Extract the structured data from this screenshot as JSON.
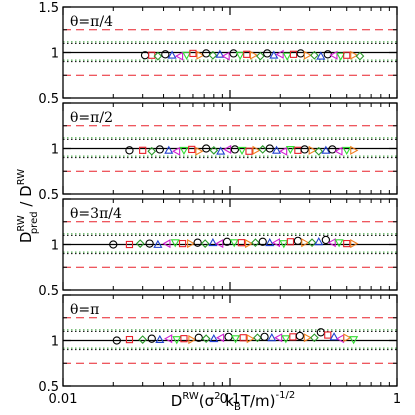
{
  "chart_data": {
    "type": "scatter",
    "xlabel_parts": {
      "D": "D",
      "RW": "RW",
      "open": "(σ",
      "two": "2",
      "k": " k",
      "B": "B",
      "close": "T/m)",
      "exp": "-1/2"
    },
    "ylabel_parts": {
      "D1": "D",
      "sup1": "RW",
      "sub1": "pred",
      "slash": " / ",
      "D2": "D",
      "sup2": "RW"
    },
    "x_scale": "log",
    "xlim": [
      0.01,
      1
    ],
    "x_ticks": [
      {
        "value": 0.01,
        "label": "0.01"
      },
      {
        "value": 0.1,
        "label": "0.1"
      },
      {
        "value": 1,
        "label": "1"
      }
    ],
    "ylim": [
      0.5,
      1.5
    ],
    "y_ticks": [
      {
        "value": 0.5,
        "label": "0.5"
      },
      {
        "value": 1,
        "label": "1"
      },
      {
        "value": 1.5,
        "label": "1.5"
      }
    ],
    "reference_lines": {
      "solid_black": 1.0,
      "dotted_black": [
        0.9,
        1.1
      ],
      "dotted_green": [
        0.9,
        1.1
      ],
      "dashed_red": [
        0.75,
        1.25
      ]
    },
    "colors": {
      "black": "#000000",
      "red": "#e8202a",
      "green": "#2a9a2a",
      "blue": "#2040d0",
      "magenta": "#d020d0",
      "brightgreen": "#33dd33",
      "orange": "#f08020"
    },
    "series_markers": [
      {
        "marker": "circle",
        "color": "#000000"
      },
      {
        "marker": "square",
        "color": "#e8202a"
      },
      {
        "marker": "diamond",
        "color": "#2a9a2a"
      },
      {
        "marker": "triangle-up",
        "color": "#2040d0"
      },
      {
        "marker": "triangle-left",
        "color": "#d020d0"
      },
      {
        "marker": "triangle-down",
        "color": "#33dd33"
      },
      {
        "marker": "triangle-right",
        "color": "#f08020"
      }
    ],
    "panels": [
      {
        "label": "θ=π/4",
        "points": [
          {
            "s": 0,
            "x": 0.031,
            "y": 0.97
          },
          {
            "s": 1,
            "x": 0.034,
            "y": 0.97
          },
          {
            "s": 2,
            "x": 0.037,
            "y": 0.96
          },
          {
            "s": 0,
            "x": 0.041,
            "y": 0.98
          },
          {
            "s": 3,
            "x": 0.045,
            "y": 0.97
          },
          {
            "s": 4,
            "x": 0.05,
            "y": 0.96
          },
          {
            "s": 5,
            "x": 0.055,
            "y": 0.97
          },
          {
            "s": 1,
            "x": 0.06,
            "y": 0.99
          },
          {
            "s": 6,
            "x": 0.066,
            "y": 0.97
          },
          {
            "s": 0,
            "x": 0.072,
            "y": 0.99
          },
          {
            "s": 2,
            "x": 0.079,
            "y": 0.97
          },
          {
            "s": 3,
            "x": 0.087,
            "y": 0.98
          },
          {
            "s": 4,
            "x": 0.095,
            "y": 0.96
          },
          {
            "s": 0,
            "x": 0.105,
            "y": 0.99
          },
          {
            "s": 5,
            "x": 0.115,
            "y": 0.97
          },
          {
            "s": 1,
            "x": 0.126,
            "y": 0.98
          },
          {
            "s": 6,
            "x": 0.138,
            "y": 0.97
          },
          {
            "s": 2,
            "x": 0.152,
            "y": 0.96
          },
          {
            "s": 0,
            "x": 0.167,
            "y": 0.99
          },
          {
            "s": 3,
            "x": 0.183,
            "y": 0.97
          },
          {
            "s": 4,
            "x": 0.2,
            "y": 0.98
          },
          {
            "s": 5,
            "x": 0.22,
            "y": 0.96
          },
          {
            "s": 1,
            "x": 0.24,
            "y": 0.98
          },
          {
            "s": 0,
            "x": 0.265,
            "y": 0.99
          },
          {
            "s": 6,
            "x": 0.29,
            "y": 0.97
          },
          {
            "s": 2,
            "x": 0.32,
            "y": 0.97
          },
          {
            "s": 3,
            "x": 0.35,
            "y": 0.96
          },
          {
            "s": 0,
            "x": 0.385,
            "y": 0.98
          },
          {
            "s": 4,
            "x": 0.42,
            "y": 0.97
          },
          {
            "s": 5,
            "x": 0.46,
            "y": 0.96
          },
          {
            "s": 1,
            "x": 0.5,
            "y": 0.97
          },
          {
            "s": 6,
            "x": 0.55,
            "y": 0.97
          },
          {
            "s": 2,
            "x": 0.6,
            "y": 0.96
          }
        ]
      },
      {
        "label": "θ=π/2",
        "points": [
          {
            "s": 0,
            "x": 0.025,
            "y": 0.98
          },
          {
            "s": 1,
            "x": 0.03,
            "y": 0.98
          },
          {
            "s": 2,
            "x": 0.034,
            "y": 0.97
          },
          {
            "s": 0,
            "x": 0.038,
            "y": 0.99
          },
          {
            "s": 3,
            "x": 0.043,
            "y": 0.98
          },
          {
            "s": 4,
            "x": 0.048,
            "y": 0.97
          },
          {
            "s": 5,
            "x": 0.053,
            "y": 0.98
          },
          {
            "s": 1,
            "x": 0.059,
            "y": 0.99
          },
          {
            "s": 6,
            "x": 0.065,
            "y": 0.97
          },
          {
            "s": 0,
            "x": 0.072,
            "y": 1.0
          },
          {
            "s": 2,
            "x": 0.08,
            "y": 0.98
          },
          {
            "s": 3,
            "x": 0.088,
            "y": 0.97
          },
          {
            "s": 4,
            "x": 0.097,
            "y": 0.99
          },
          {
            "s": 0,
            "x": 0.107,
            "y": 0.99
          },
          {
            "s": 5,
            "x": 0.118,
            "y": 0.98
          },
          {
            "s": 1,
            "x": 0.13,
            "y": 0.97
          },
          {
            "s": 6,
            "x": 0.143,
            "y": 0.98
          },
          {
            "s": 2,
            "x": 0.157,
            "y": 0.99
          },
          {
            "s": 0,
            "x": 0.173,
            "y": 1.0
          },
          {
            "s": 3,
            "x": 0.19,
            "y": 0.98
          },
          {
            "s": 4,
            "x": 0.21,
            "y": 0.97
          },
          {
            "s": 5,
            "x": 0.23,
            "y": 0.99
          },
          {
            "s": 1,
            "x": 0.255,
            "y": 0.98
          },
          {
            "s": 0,
            "x": 0.28,
            "y": 0.99
          },
          {
            "s": 6,
            "x": 0.31,
            "y": 0.98
          },
          {
            "s": 2,
            "x": 0.34,
            "y": 0.97
          },
          {
            "s": 3,
            "x": 0.375,
            "y": 0.98
          },
          {
            "s": 0,
            "x": 0.41,
            "y": 0.99
          },
          {
            "s": 4,
            "x": 0.45,
            "y": 0.97
          },
          {
            "s": 5,
            "x": 0.5,
            "y": 0.98
          },
          {
            "s": 6,
            "x": 0.55,
            "y": 0.98
          }
        ]
      },
      {
        "label": "θ=3π/4",
        "points": [
          {
            "s": 0,
            "x": 0.02,
            "y": 1.0
          },
          {
            "s": 1,
            "x": 0.025,
            "y": 1.0
          },
          {
            "s": 2,
            "x": 0.029,
            "y": 1.01
          },
          {
            "s": 0,
            "x": 0.033,
            "y": 1.01
          },
          {
            "s": 3,
            "x": 0.037,
            "y": 1.0
          },
          {
            "s": 4,
            "x": 0.042,
            "y": 1.01
          },
          {
            "s": 5,
            "x": 0.047,
            "y": 1.02
          },
          {
            "s": 1,
            "x": 0.052,
            "y": 1.01
          },
          {
            "s": 6,
            "x": 0.058,
            "y": 1.01
          },
          {
            "s": 0,
            "x": 0.064,
            "y": 1.02
          },
          {
            "s": 2,
            "x": 0.071,
            "y": 1.01
          },
          {
            "s": 3,
            "x": 0.079,
            "y": 1.02
          },
          {
            "s": 4,
            "x": 0.087,
            "y": 1.01
          },
          {
            "s": 0,
            "x": 0.096,
            "y": 1.03
          },
          {
            "s": 5,
            "x": 0.106,
            "y": 1.02
          },
          {
            "s": 1,
            "x": 0.117,
            "y": 1.02
          },
          {
            "s": 6,
            "x": 0.129,
            "y": 1.01
          },
          {
            "s": 2,
            "x": 0.142,
            "y": 1.02
          },
          {
            "s": 0,
            "x": 0.157,
            "y": 1.03
          },
          {
            "s": 3,
            "x": 0.173,
            "y": 1.02
          },
          {
            "s": 4,
            "x": 0.19,
            "y": 1.02
          },
          {
            "s": 5,
            "x": 0.21,
            "y": 1.01
          },
          {
            "s": 1,
            "x": 0.23,
            "y": 1.03
          },
          {
            "s": 0,
            "x": 0.255,
            "y": 1.04
          },
          {
            "s": 6,
            "x": 0.28,
            "y": 1.02
          },
          {
            "s": 2,
            "x": 0.31,
            "y": 1.02
          },
          {
            "s": 3,
            "x": 0.34,
            "y": 1.03
          },
          {
            "s": 0,
            "x": 0.375,
            "y": 1.05
          },
          {
            "s": 4,
            "x": 0.41,
            "y": 1.02
          },
          {
            "s": 5,
            "x": 0.45,
            "y": 1.02
          },
          {
            "s": 1,
            "x": 0.5,
            "y": 1.01
          },
          {
            "s": 6,
            "x": 0.55,
            "y": 1.01
          }
        ]
      },
      {
        "label": "θ=π",
        "points": [
          {
            "s": 0,
            "x": 0.021,
            "y": 1.0
          },
          {
            "s": 1,
            "x": 0.025,
            "y": 1.01
          },
          {
            "s": 2,
            "x": 0.03,
            "y": 1.01
          },
          {
            "s": 0,
            "x": 0.034,
            "y": 1.02
          },
          {
            "s": 3,
            "x": 0.038,
            "y": 1.01
          },
          {
            "s": 4,
            "x": 0.043,
            "y": 1.02
          },
          {
            "s": 5,
            "x": 0.048,
            "y": 1.01
          },
          {
            "s": 1,
            "x": 0.053,
            "y": 1.02
          },
          {
            "s": 6,
            "x": 0.059,
            "y": 1.01
          },
          {
            "s": 0,
            "x": 0.065,
            "y": 1.03
          },
          {
            "s": 2,
            "x": 0.072,
            "y": 1.02
          },
          {
            "s": 3,
            "x": 0.08,
            "y": 1.02
          },
          {
            "s": 4,
            "x": 0.088,
            "y": 1.03
          },
          {
            "s": 0,
            "x": 0.098,
            "y": 1.04
          },
          {
            "s": 5,
            "x": 0.108,
            "y": 1.02
          },
          {
            "s": 1,
            "x": 0.12,
            "y": 1.03
          },
          {
            "s": 6,
            "x": 0.132,
            "y": 1.02
          },
          {
            "s": 2,
            "x": 0.146,
            "y": 1.03
          },
          {
            "s": 0,
            "x": 0.161,
            "y": 1.04
          },
          {
            "s": 3,
            "x": 0.178,
            "y": 1.03
          },
          {
            "s": 4,
            "x": 0.196,
            "y": 1.03
          },
          {
            "s": 5,
            "x": 0.216,
            "y": 1.02
          },
          {
            "s": 1,
            "x": 0.238,
            "y": 1.04
          },
          {
            "s": 0,
            "x": 0.262,
            "y": 1.05
          },
          {
            "s": 6,
            "x": 0.29,
            "y": 1.03
          },
          {
            "s": 2,
            "x": 0.32,
            "y": 1.03
          },
          {
            "s": 0,
            "x": 0.35,
            "y": 1.09
          },
          {
            "s": 1,
            "x": 0.385,
            "y": 1.06
          },
          {
            "s": 3,
            "x": 0.42,
            "y": 1.04
          },
          {
            "s": 4,
            "x": 0.46,
            "y": 1.02
          },
          {
            "s": 6,
            "x": 0.5,
            "y": 1.03
          },
          {
            "s": 5,
            "x": 0.55,
            "y": 1.01
          }
        ]
      }
    ]
  }
}
